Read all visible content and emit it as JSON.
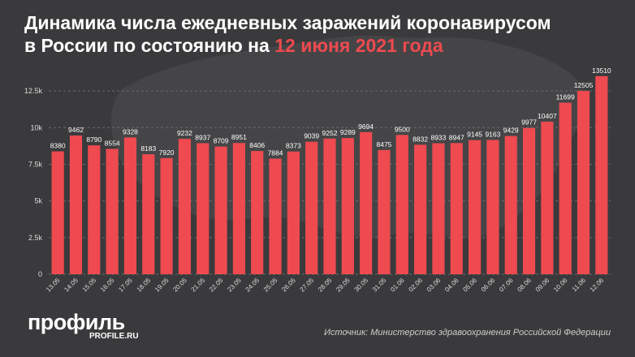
{
  "header": {
    "title_part1": "Динамика числа ежедневных заражений коронавирусом",
    "title_part2": "в России по состоянию на ",
    "title_highlight": "12 июня 2021 года"
  },
  "footer": {
    "logo": "профиль",
    "logo_sub": "PROFILE.RU",
    "source": "Источник: Министерство здравоохранения Российской Федерации"
  },
  "colors": {
    "background": "#3a3a3c",
    "bar": "#ee4a50",
    "highlight": "#ee4a50"
  },
  "chart_data": {
    "type": "bar",
    "title": "Динамика числа ежедневных заражений коронавирусом в России по состоянию на 12 июня 2021 года",
    "categories": [
      "13.05",
      "14.05",
      "15.05",
      "16.05",
      "17.05",
      "18.05",
      "19.05",
      "20.05",
      "21.05",
      "22.05",
      "23.05",
      "24.05",
      "25.05",
      "26.05",
      "27.05",
      "28.05",
      "29.05",
      "30.05",
      "31.05",
      "01.06",
      "02.06",
      "03.06",
      "04.06",
      "05.06",
      "06.06",
      "07.06",
      "08.06",
      "09.06",
      "10.06",
      "11.06",
      "12.06"
    ],
    "values": [
      8380,
      9462,
      8790,
      8554,
      9328,
      8183,
      7920,
      9232,
      8937,
      8709,
      8951,
      8406,
      7884,
      8373,
      9039,
      9252,
      9289,
      9694,
      8475,
      9500,
      8832,
      8933,
      8947,
      9145,
      9163,
      9429,
      9977,
      10407,
      11699,
      12505,
      13510
    ],
    "ylim": [
      0,
      14000
    ],
    "yticks": [
      0,
      2500,
      5000,
      7500,
      10000,
      12500
    ],
    "ytick_labels": [
      "0",
      "2.5k",
      "5k",
      "7.5k",
      "10k",
      "12.5k"
    ],
    "xlabel": "",
    "ylabel": "",
    "grid": true
  }
}
